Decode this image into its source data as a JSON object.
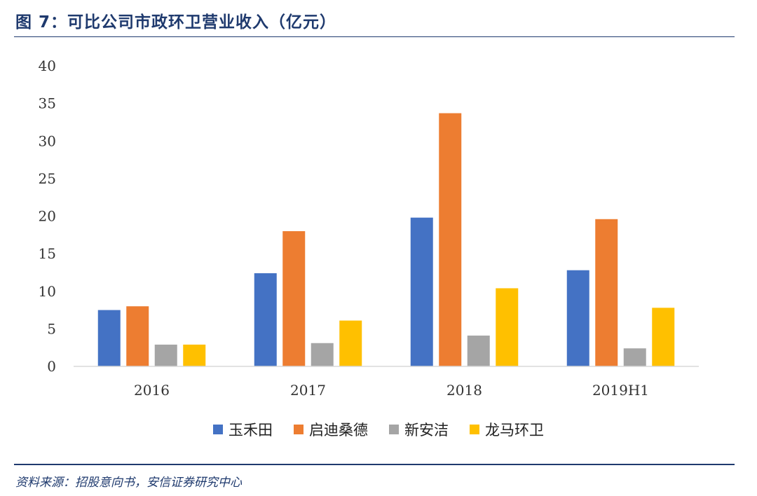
{
  "header": {
    "title": "图 7：可比公司市政环卫营业收入（亿元）"
  },
  "footer": {
    "source": "资料来源：招股意向书，安信证券研究中心"
  },
  "colors": {
    "brand": "#1f3a6e"
  },
  "chart_data": {
    "type": "bar",
    "title": "",
    "xlabel": "",
    "ylabel": "",
    "categories": [
      "2016",
      "2017",
      "2018",
      "2019H1"
    ],
    "ylim": [
      0,
      40
    ],
    "yticks": [
      0,
      5,
      10,
      15,
      20,
      25,
      30,
      35,
      40
    ],
    "ytick_labels": [
      "0",
      "5",
      "10",
      "15",
      "20",
      "25",
      "30",
      "35",
      "40"
    ],
    "grid": false,
    "legend_position": "bottom",
    "series": [
      {
        "name": "玉禾田",
        "color": "#4472c4",
        "values": [
          7.5,
          12.4,
          19.8,
          12.8
        ]
      },
      {
        "name": "启迪桑德",
        "color": "#ed7d31",
        "values": [
          8.0,
          18.0,
          33.7,
          19.6
        ]
      },
      {
        "name": "新安洁",
        "color": "#a5a5a5",
        "values": [
          2.9,
          3.1,
          4.1,
          2.4
        ]
      },
      {
        "name": "龙马环卫",
        "color": "#ffc000",
        "values": [
          2.9,
          6.1,
          10.4,
          7.8
        ]
      }
    ]
  }
}
